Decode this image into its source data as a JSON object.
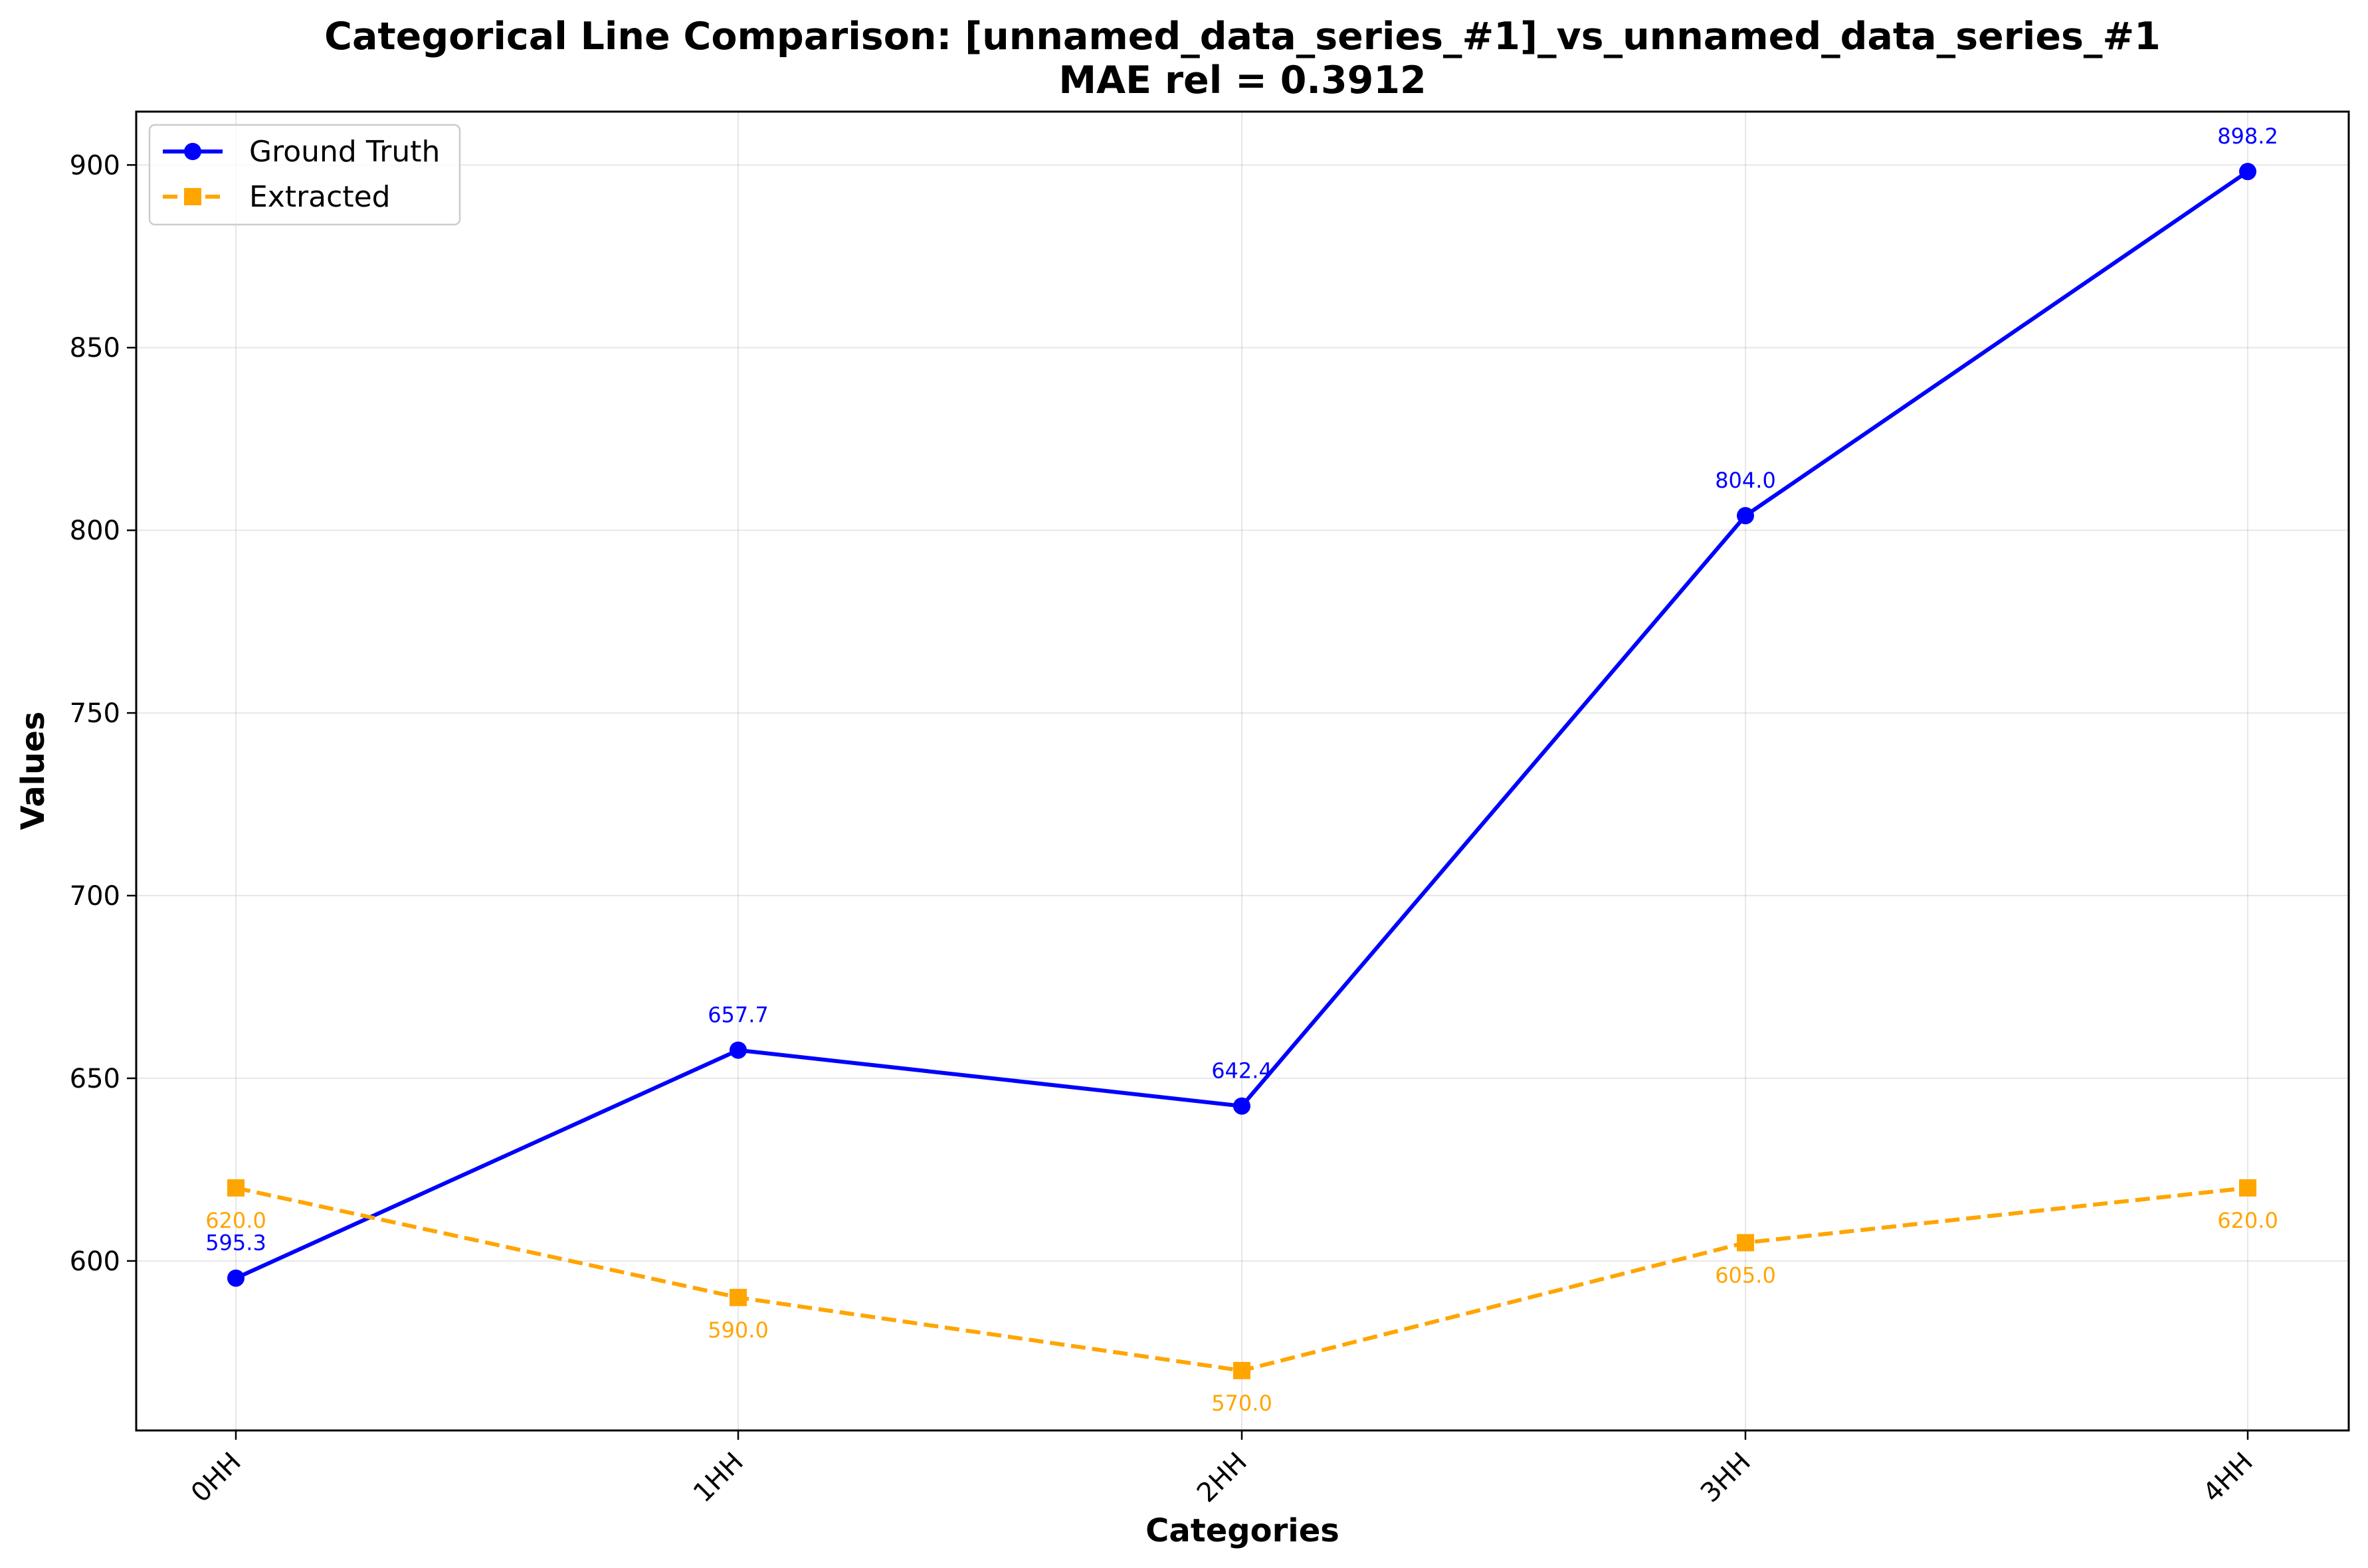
{
  "chart_data": {
    "type": "line",
    "title": "Categorical Line Comparison: [unnamed_data_series_#1]_vs_unnamed_data_series_#1",
    "subtitle": "MAE rel = 0.3912",
    "xlabel": "Categories",
    "ylabel": "Values",
    "categories": [
      "0HH",
      "1HH",
      "2HH",
      "3HH",
      "4HH"
    ],
    "ylim": [
      553.6,
      914.6
    ],
    "yticks": [
      600,
      650,
      700,
      750,
      800,
      850,
      900
    ],
    "grid": true,
    "legend_position": "top-left",
    "series": [
      {
        "name": "Ground Truth",
        "values": [
          595.3,
          657.7,
          642.4,
          804.0,
          898.2
        ],
        "labels": [
          "595.3",
          "657.7",
          "642.4",
          "804.0",
          "898.2"
        ],
        "color": "#0000ff",
        "line_style": "solid",
        "marker": "circle",
        "label_position": "above"
      },
      {
        "name": "Extracted",
        "values": [
          620.0,
          590.0,
          570.0,
          605.0,
          620.0
        ],
        "labels": [
          "620.0",
          "590.0",
          "570.0",
          "605.0",
          "620.0"
        ],
        "color": "#ffa500",
        "line_style": "dashed",
        "marker": "square",
        "label_position": "below"
      }
    ]
  }
}
